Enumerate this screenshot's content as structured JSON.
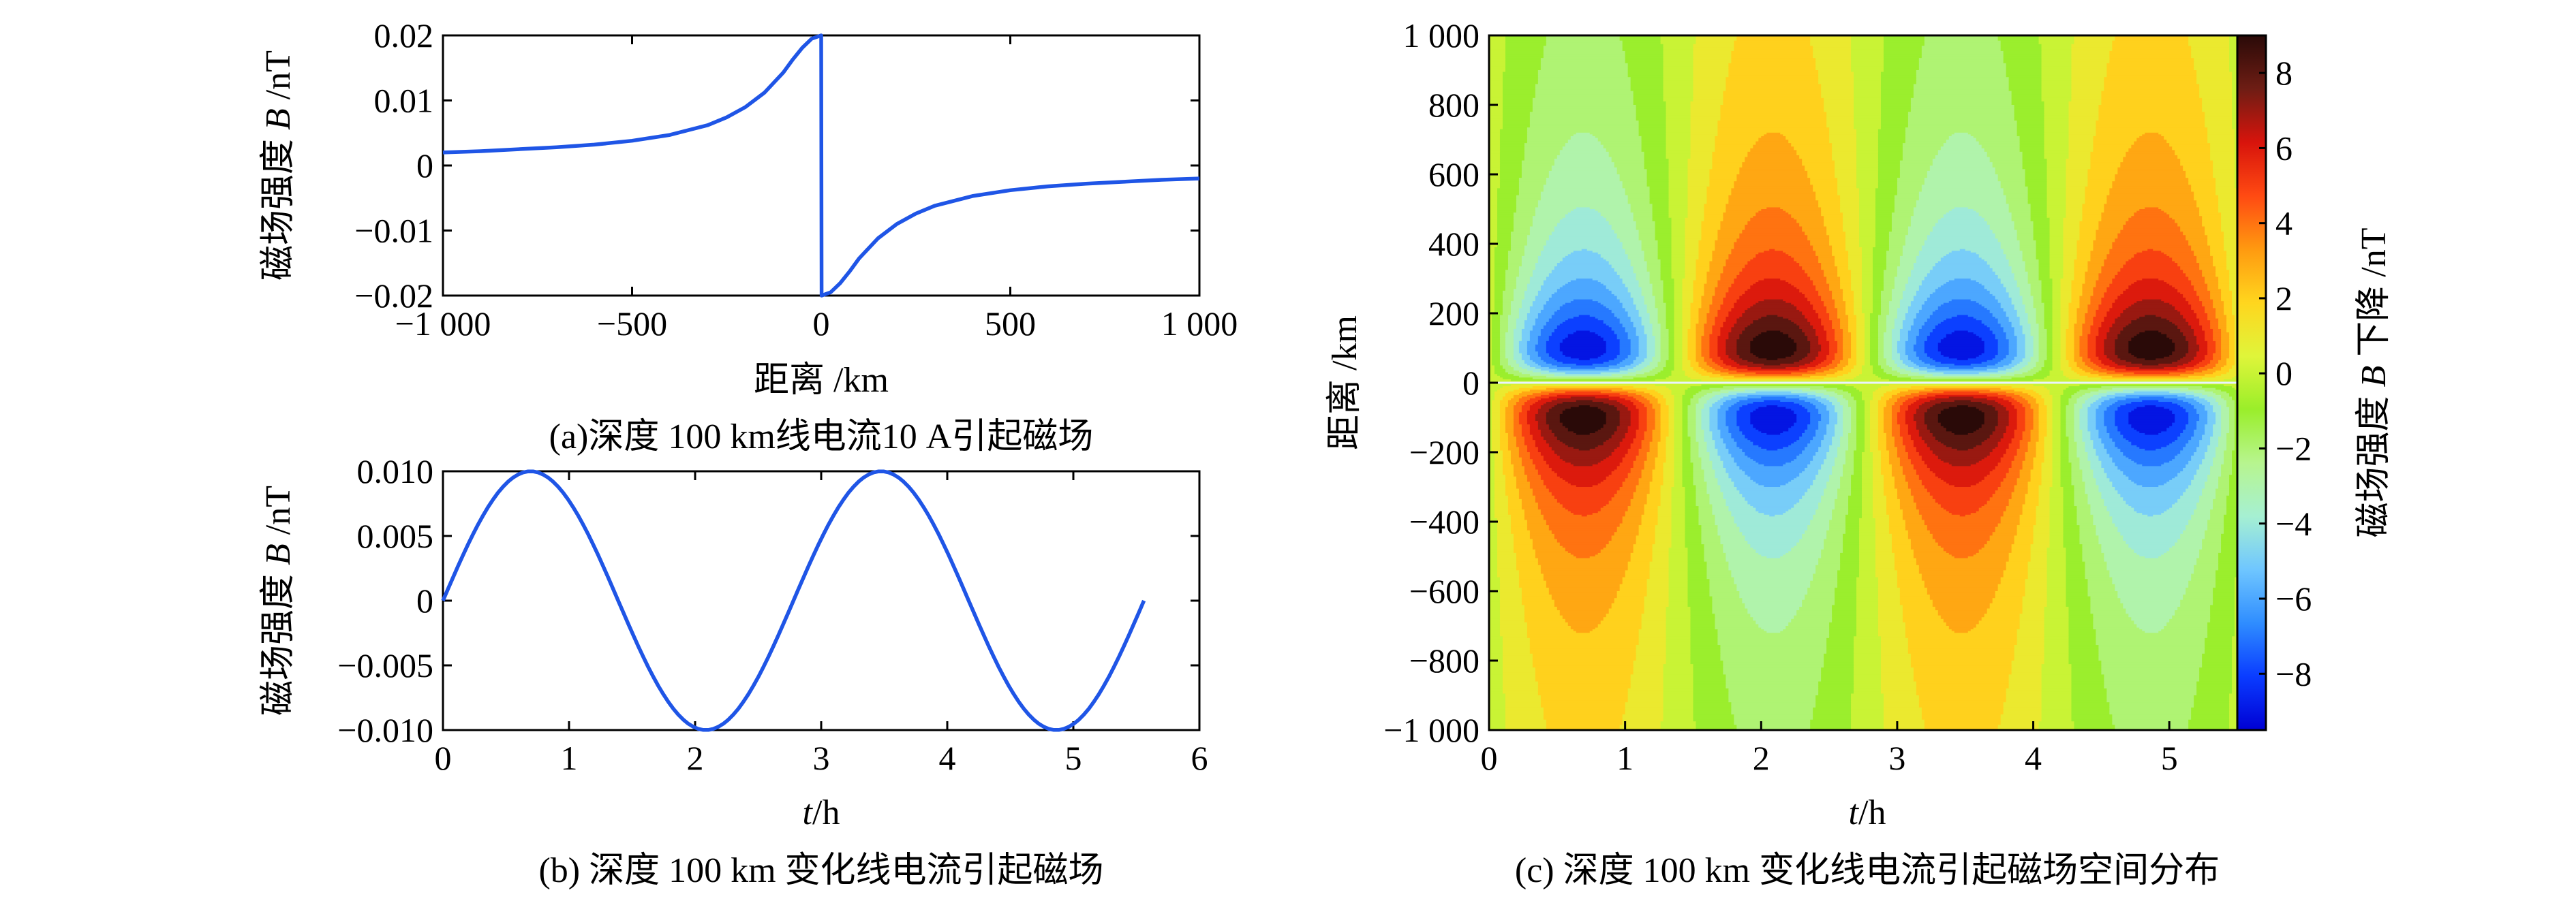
{
  "chart_data": [
    {
      "id": "a",
      "type": "line",
      "caption": "(a)深度 100 km线电流10  A引起磁场",
      "xlabel": "距离 /km",
      "ylabel_prefix": "磁场强度 ",
      "ylabel_var": "B",
      "ylabel_unit": " /nT",
      "xlim": [
        -1000,
        1000
      ],
      "ylim": [
        -0.02,
        0.02
      ],
      "xticks": [
        {
          "value": -1000,
          "label": "−1 000"
        },
        {
          "value": -500,
          "label": "−500"
        },
        {
          "value": 0,
          "label": "0"
        },
        {
          "value": 500,
          "label": "500"
        },
        {
          "value": 1000,
          "label": "1 000"
        }
      ],
      "yticks": [
        {
          "value": 0.02,
          "label": "0.02"
        },
        {
          "value": 0.01,
          "label": "0.01"
        },
        {
          "value": 0,
          "label": "0"
        },
        {
          "value": -0.01,
          "label": "−0.01"
        },
        {
          "value": -0.02,
          "label": "−0.02"
        }
      ],
      "series": [
        {
          "name": "B",
          "x": [
            -1000,
            -900,
            -800,
            -700,
            -600,
            -500,
            -400,
            -300,
            -250,
            -200,
            -150,
            -100,
            -75,
            -50,
            -25,
            0,
            1,
            25,
            50,
            75,
            100,
            150,
            200,
            250,
            300,
            400,
            500,
            600,
            700,
            800,
            900,
            1000
          ],
          "y": [
            0.002,
            0.0022,
            0.0025,
            0.0028,
            0.0032,
            0.0038,
            0.0047,
            0.0062,
            0.0074,
            0.009,
            0.0112,
            0.0143,
            0.0163,
            0.0181,
            0.0195,
            0.02,
            -0.02,
            -0.0195,
            -0.0181,
            -0.0163,
            -0.0143,
            -0.0112,
            -0.009,
            -0.0074,
            -0.0062,
            -0.0047,
            -0.0038,
            -0.0032,
            -0.0028,
            -0.0025,
            -0.0022,
            -0.002
          ]
        }
      ]
    },
    {
      "id": "b",
      "type": "line",
      "caption": "(b) 深度 100 km 变化线电流引起磁场",
      "xlabel_var": "t",
      "xlabel_unit": "/h",
      "ylabel_prefix": "磁场强度 ",
      "ylabel_var": "B",
      "ylabel_unit": " /nT",
      "xlim": [
        0,
        6
      ],
      "ylim": [
        -0.01,
        0.01
      ],
      "xticks": [
        {
          "value": 0,
          "label": "0"
        },
        {
          "value": 1,
          "label": "1"
        },
        {
          "value": 2,
          "label": "2"
        },
        {
          "value": 3,
          "label": "3"
        },
        {
          "value": 4,
          "label": "4"
        },
        {
          "value": 5,
          "label": "5"
        },
        {
          "value": 6,
          "label": "6"
        }
      ],
      "yticks": [
        {
          "value": 0.01,
          "label": "0.010"
        },
        {
          "value": 0.005,
          "label": "0.005"
        },
        {
          "value": 0,
          "label": "0"
        },
        {
          "value": -0.005,
          "label": "−0.005"
        },
        {
          "value": -0.01,
          "label": "−0.010"
        }
      ],
      "series": [
        {
          "name": "B(t)",
          "function": "0.01*sin(2*pi*t/2.78)",
          "t_range": [
            0,
            5.56
          ],
          "samples": 140
        }
      ]
    },
    {
      "id": "c",
      "type": "heatmap",
      "caption": "(c) 深度 100 km 变化线电流引起磁场空间分布",
      "xlabel_var": "t",
      "xlabel_unit": "/h",
      "ylabel": "距离 /km",
      "xlim": [
        0,
        5.56
      ],
      "ylim": [
        -1000,
        1000
      ],
      "xticks": [
        {
          "value": 0,
          "label": "0"
        },
        {
          "value": 1,
          "label": "1"
        },
        {
          "value": 2,
          "label": "2"
        },
        {
          "value": 3,
          "label": "3"
        },
        {
          "value": 4,
          "label": "4"
        },
        {
          "value": 5,
          "label": "5"
        }
      ],
      "yticks": [
        {
          "value": 1000,
          "label": "1 000"
        },
        {
          "value": 800,
          "label": "800"
        },
        {
          "value": 600,
          "label": "600"
        },
        {
          "value": 400,
          "label": "400"
        },
        {
          "value": 200,
          "label": "200"
        },
        {
          "value": 0,
          "label": "0"
        },
        {
          "value": -200,
          "label": "−200"
        },
        {
          "value": -400,
          "label": "−400"
        },
        {
          "value": -600,
          "label": "−600"
        },
        {
          "value": -800,
          "label": "−800"
        },
        {
          "value": -1000,
          "label": "−1 000"
        }
      ],
      "lobe_centers_t": [
        0.69,
        2.08,
        3.47,
        4.86
      ],
      "lobe_sign_upper": [
        -1,
        1,
        -1,
        1
      ],
      "contour_levels": [
        -9,
        -8,
        -7,
        -6,
        -5,
        -4,
        -3,
        -2,
        -1,
        0,
        1,
        2,
        3,
        4,
        5,
        6,
        7,
        8,
        9
      ],
      "colorbar": {
        "label_prefix": "磁场强度 ",
        "label_var": "B",
        "label_suffix": " 下降 /nT",
        "range": [
          -9.5,
          9
        ],
        "ticks": [
          {
            "value": 8,
            "label": "8"
          },
          {
            "value": 6,
            "label": "6"
          },
          {
            "value": 4,
            "label": "4"
          },
          {
            "value": 2,
            "label": "2"
          },
          {
            "value": 0,
            "label": "0"
          },
          {
            "value": -2,
            "label": "−2"
          },
          {
            "value": -4,
            "label": "−4"
          },
          {
            "value": -6,
            "label": "−6"
          },
          {
            "value": -8,
            "label": "−8"
          }
        ],
        "colormap": [
          "#0000d4",
          "#0a3cff",
          "#2f8dff",
          "#6fc6ff",
          "#a6f0d2",
          "#b7f58e",
          "#9aee2a",
          "#dff53a",
          "#ffd61e",
          "#ff9a10",
          "#ff4a12",
          "#d8140c",
          "#6e1d14",
          "#2a0a08"
        ]
      }
    }
  ]
}
